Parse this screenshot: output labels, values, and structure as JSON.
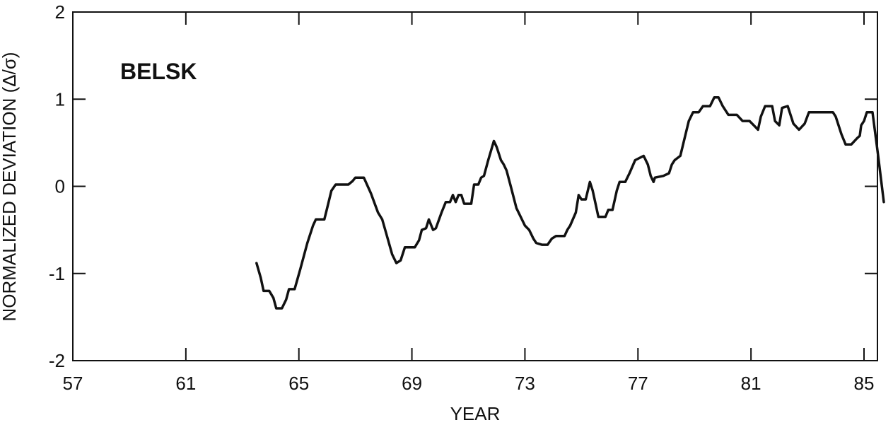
{
  "chart_data": {
    "type": "line",
    "title": "",
    "annotation": "BELSK",
    "xlabel": "YEAR",
    "ylabel": "NORMALIZED DEVIATION (Δ/σ)",
    "xlim": [
      57,
      85.5
    ],
    "ylim": [
      -2,
      2
    ],
    "x_ticks": [
      57,
      61,
      65,
      69,
      73,
      77,
      81,
      85
    ],
    "x_tick_labels": [
      "57",
      "61",
      "65",
      "69",
      "73",
      "77",
      "81",
      "85"
    ],
    "y_ticks": [
      -2,
      -1,
      0,
      1,
      2
    ],
    "y_tick_labels": [
      "-2",
      "-1",
      "0",
      "1",
      "2"
    ],
    "grid": false,
    "series": [
      {
        "color": "#111111",
        "points": [
          [
            63.5,
            -0.88
          ],
          [
            63.65,
            -1.05
          ],
          [
            63.75,
            -1.2
          ],
          [
            63.95,
            -1.2
          ],
          [
            64.1,
            -1.28
          ],
          [
            64.2,
            -1.4
          ],
          [
            64.4,
            -1.4
          ],
          [
            64.55,
            -1.3
          ],
          [
            64.65,
            -1.18
          ],
          [
            64.85,
            -1.18
          ],
          [
            65.05,
            -0.95
          ],
          [
            65.3,
            -0.65
          ],
          [
            65.5,
            -0.45
          ],
          [
            65.6,
            -0.38
          ],
          [
            65.9,
            -0.38
          ],
          [
            66.0,
            -0.25
          ],
          [
            66.15,
            -0.05
          ],
          [
            66.3,
            0.02
          ],
          [
            66.75,
            0.02
          ],
          [
            66.9,
            0.06
          ],
          [
            67.0,
            0.1
          ],
          [
            67.3,
            0.1
          ],
          [
            67.55,
            -0.08
          ],
          [
            67.8,
            -0.3
          ],
          [
            67.95,
            -0.38
          ],
          [
            68.1,
            -0.55
          ],
          [
            68.3,
            -0.78
          ],
          [
            68.45,
            -0.88
          ],
          [
            68.6,
            -0.85
          ],
          [
            68.75,
            -0.7
          ],
          [
            69.1,
            -0.7
          ],
          [
            69.25,
            -0.62
          ],
          [
            69.35,
            -0.5
          ],
          [
            69.5,
            -0.48
          ],
          [
            69.6,
            -0.38
          ],
          [
            69.75,
            -0.5
          ],
          [
            69.85,
            -0.48
          ],
          [
            70.05,
            -0.3
          ],
          [
            70.2,
            -0.18
          ],
          [
            70.35,
            -0.18
          ],
          [
            70.45,
            -0.1
          ],
          [
            70.55,
            -0.18
          ],
          [
            70.65,
            -0.1
          ],
          [
            70.75,
            -0.1
          ],
          [
            70.85,
            -0.2
          ],
          [
            71.1,
            -0.2
          ],
          [
            71.2,
            0.02
          ],
          [
            71.35,
            0.02
          ],
          [
            71.45,
            0.1
          ],
          [
            71.55,
            0.12
          ],
          [
            71.7,
            0.3
          ],
          [
            71.9,
            0.52
          ],
          [
            72.0,
            0.45
          ],
          [
            72.15,
            0.3
          ],
          [
            72.25,
            0.25
          ],
          [
            72.35,
            0.18
          ],
          [
            72.5,
            0.0
          ],
          [
            72.7,
            -0.25
          ],
          [
            72.85,
            -0.35
          ],
          [
            73.0,
            -0.45
          ],
          [
            73.15,
            -0.5
          ],
          [
            73.3,
            -0.6
          ],
          [
            73.4,
            -0.65
          ],
          [
            73.6,
            -0.67
          ],
          [
            73.8,
            -0.67
          ],
          [
            73.95,
            -0.6
          ],
          [
            74.1,
            -0.57
          ],
          [
            74.4,
            -0.57
          ],
          [
            74.5,
            -0.5
          ],
          [
            74.6,
            -0.45
          ],
          [
            74.8,
            -0.3
          ],
          [
            74.9,
            -0.1
          ],
          [
            75.0,
            -0.15
          ],
          [
            75.15,
            -0.15
          ],
          [
            75.3,
            0.05
          ],
          [
            75.4,
            -0.05
          ],
          [
            75.5,
            -0.2
          ],
          [
            75.6,
            -0.35
          ],
          [
            75.85,
            -0.35
          ],
          [
            75.95,
            -0.27
          ],
          [
            76.1,
            -0.27
          ],
          [
            76.25,
            -0.05
          ],
          [
            76.35,
            0.05
          ],
          [
            76.55,
            0.05
          ],
          [
            76.7,
            0.15
          ],
          [
            76.9,
            0.3
          ],
          [
            77.2,
            0.35
          ],
          [
            77.35,
            0.25
          ],
          [
            77.45,
            0.12
          ],
          [
            77.55,
            0.05
          ],
          [
            77.6,
            0.1
          ],
          [
            77.9,
            0.12
          ],
          [
            78.1,
            0.15
          ],
          [
            78.2,
            0.25
          ],
          [
            78.3,
            0.3
          ],
          [
            78.5,
            0.35
          ],
          [
            78.65,
            0.55
          ],
          [
            78.8,
            0.75
          ],
          [
            78.95,
            0.85
          ],
          [
            79.15,
            0.85
          ],
          [
            79.3,
            0.92
          ],
          [
            79.55,
            0.92
          ],
          [
            79.7,
            1.02
          ],
          [
            79.85,
            1.02
          ],
          [
            80.0,
            0.92
          ],
          [
            80.2,
            0.82
          ],
          [
            80.5,
            0.82
          ],
          [
            80.7,
            0.75
          ],
          [
            80.95,
            0.75
          ],
          [
            81.1,
            0.7
          ],
          [
            81.25,
            0.65
          ],
          [
            81.35,
            0.8
          ],
          [
            81.5,
            0.92
          ],
          [
            81.75,
            0.92
          ],
          [
            81.85,
            0.75
          ],
          [
            82.0,
            0.7
          ],
          [
            82.1,
            0.9
          ],
          [
            82.3,
            0.92
          ],
          [
            82.5,
            0.72
          ],
          [
            82.7,
            0.65
          ],
          [
            82.9,
            0.72
          ],
          [
            83.05,
            0.85
          ],
          [
            83.65,
            0.85
          ],
          [
            83.9,
            0.85
          ],
          [
            84.0,
            0.8
          ],
          [
            84.2,
            0.6
          ],
          [
            84.35,
            0.48
          ],
          [
            84.55,
            0.48
          ],
          [
            84.75,
            0.55
          ],
          [
            84.85,
            0.58
          ],
          [
            84.9,
            0.7
          ],
          [
            85.0,
            0.75
          ],
          [
            85.1,
            0.85
          ],
          [
            85.3,
            0.85
          ],
          [
            85.5,
            0.35
          ],
          [
            85.7,
            -0.18
          ]
        ]
      }
    ]
  }
}
